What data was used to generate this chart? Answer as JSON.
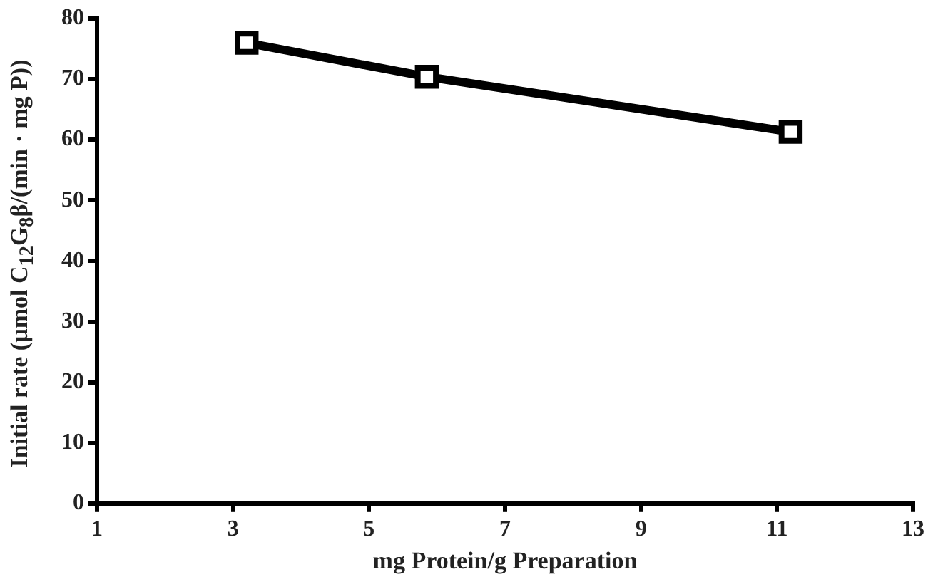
{
  "chart_data": {
    "type": "line",
    "xlabel": "mg Protein/g Preparation",
    "ylabel": "Initial rate (µmol C$_{12}$G$_{8}$β/(min · mg P))",
    "x": [
      3.2,
      5.85,
      11.2
    ],
    "series": [
      {
        "color": "#000000",
        "values": [
          76,
          70.4,
          61.3
        ]
      }
    ],
    "xlim": [
      1,
      13
    ],
    "xticks": [
      1,
      3,
      5,
      7,
      9,
      11,
      13
    ],
    "ylim": [
      0,
      80
    ],
    "yticks": [
      0,
      10,
      20,
      30,
      40,
      50,
      60,
      70,
      80
    ],
    "grid": false,
    "legend": false,
    "marker": "square",
    "line_style": "solid"
  }
}
